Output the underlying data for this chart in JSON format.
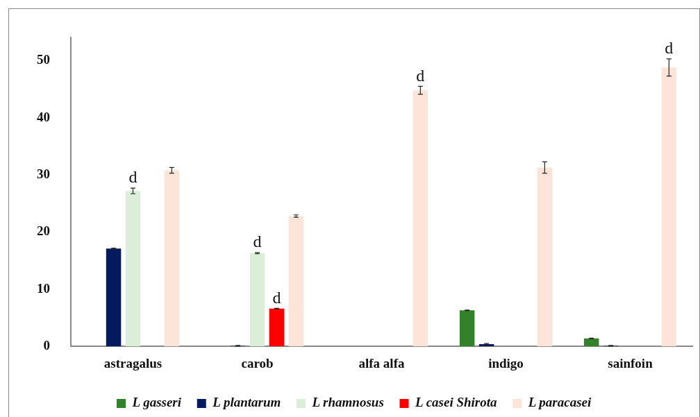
{
  "chart_data": {
    "type": "bar",
    "categories": [
      "astragalus",
      "carob",
      "alfa alfa",
      "indigo",
      "sainfoin"
    ],
    "series": [
      {
        "name": "L gasseri",
        "color": "#31822a",
        "values": [
          null,
          null,
          null,
          6.3,
          1.4
        ],
        "errors": [
          null,
          null,
          null,
          0.05,
          0.05
        ]
      },
      {
        "name": "L plantarum",
        "color": "#021b5e",
        "values": [
          17.1,
          0.1,
          null,
          0.4,
          0.1
        ],
        "errors": [
          0.1,
          0.05,
          null,
          0.1,
          0.05
        ]
      },
      {
        "name": "L rhamnosus",
        "color": "#dbeed8",
        "values": [
          27.2,
          16.3,
          null,
          null,
          null
        ],
        "errors": [
          0.5,
          0.1,
          null,
          null,
          null
        ],
        "value_labels": [
          "d",
          "d",
          null,
          null,
          null
        ]
      },
      {
        "name": "L casei Shirota",
        "color": "#ff0000",
        "values": [
          null,
          6.6,
          null,
          null,
          null
        ],
        "errors": [
          null,
          0.05,
          null,
          null,
          null
        ],
        "value_labels": [
          null,
          "d",
          null,
          null,
          null
        ]
      },
      {
        "name": "L paracasei",
        "color": "#fde4d8",
        "values": [
          30.8,
          22.8,
          44.8,
          31.3,
          48.8
        ],
        "errors": [
          0.5,
          0.2,
          0.7,
          1.0,
          1.5
        ],
        "value_labels": [
          null,
          null,
          "d",
          null,
          "d"
        ]
      }
    ],
    "ylim": [
      0,
      54
    ],
    "yticks": [
      0,
      10,
      20,
      30,
      40,
      50
    ],
    "grid": false,
    "legend": "bottom"
  }
}
